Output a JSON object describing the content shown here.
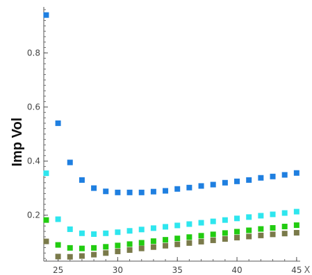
{
  "chart_data": {
    "type": "scatter",
    "xlabel": "X",
    "ylabel": "Imp Vol",
    "xlim": [
      23.8,
      45.3
    ],
    "ylim": [
      0.03,
      0.97
    ],
    "x_ticks": [
      25,
      30,
      35,
      40,
      45
    ],
    "x_tick_labels": [
      "25",
      "30",
      "35",
      "40",
      "45"
    ],
    "y_ticks": [
      0.2,
      0.4,
      0.6,
      0.8
    ],
    "y_tick_labels": [
      "0.2",
      "0.4",
      "0.6",
      "0.8"
    ],
    "x_minor_step": 1,
    "y_minor_step": 0.02,
    "grid": false,
    "series": [
      {
        "color": "#1f7fe0",
        "x": [
          24,
          25,
          26,
          27,
          28,
          29,
          30,
          31,
          32,
          33,
          34,
          35,
          36,
          37,
          38,
          39,
          40,
          41,
          42,
          43,
          44,
          45
        ],
        "values": [
          0.94,
          0.54,
          0.395,
          0.33,
          0.3,
          0.288,
          0.284,
          0.284,
          0.284,
          0.287,
          0.29,
          0.297,
          0.302,
          0.308,
          0.313,
          0.32,
          0.325,
          0.33,
          0.338,
          0.343,
          0.349,
          0.356
        ]
      },
      {
        "color": "#2ee6ee",
        "x": [
          24,
          25,
          26,
          27,
          28,
          29,
          30,
          31,
          32,
          33,
          34,
          35,
          36,
          37,
          38,
          39,
          40,
          41,
          42,
          43,
          44,
          45
        ],
        "values": [
          0.355,
          0.185,
          0.148,
          0.133,
          0.13,
          0.133,
          0.137,
          0.142,
          0.147,
          0.152,
          0.157,
          0.162,
          0.167,
          0.172,
          0.177,
          0.182,
          0.188,
          0.193,
          0.198,
          0.203,
          0.208,
          0.213
        ]
      },
      {
        "color": "#22cc11",
        "x": [
          24,
          25,
          26,
          27,
          28,
          29,
          30,
          31,
          32,
          33,
          34,
          35,
          36,
          37,
          38,
          39,
          40,
          41,
          42,
          43,
          44,
          45
        ],
        "values": [
          0.182,
          0.09,
          0.079,
          0.077,
          0.079,
          0.083,
          0.088,
          0.093,
          0.098,
          0.104,
          0.109,
          0.114,
          0.119,
          0.124,
          0.129,
          0.134,
          0.139,
          0.144,
          0.149,
          0.153,
          0.158,
          0.163
        ]
      },
      {
        "color": "#7a7a4a",
        "x": [
          24,
          25,
          26,
          27,
          28,
          29,
          30,
          31,
          32,
          33,
          34,
          35,
          36,
          37,
          38,
          39,
          40,
          41,
          42,
          43,
          44,
          45
        ],
        "values": [
          0.103,
          0.047,
          0.046,
          0.049,
          0.054,
          0.06,
          0.066,
          0.071,
          0.077,
          0.082,
          0.087,
          0.092,
          0.097,
          0.102,
          0.107,
          0.112,
          0.117,
          0.121,
          0.125,
          0.129,
          0.132,
          0.135
        ]
      }
    ]
  }
}
